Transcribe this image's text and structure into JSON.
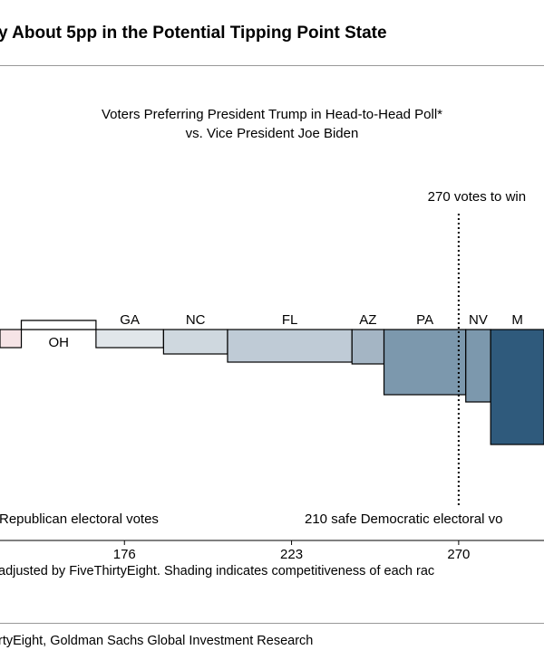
{
  "title": "y About 5pp in the Potential Tipping Point State",
  "subtitle_line1": "Voters Preferring President Trump in Head-to-Head Poll*",
  "subtitle_line2": "vs. Vice President Joe Biden",
  "threshold_label": "270 votes to win",
  "left_annotation": "Republican electoral votes",
  "right_annotation": "210 safe Democratic electoral vo",
  "note": "adjusted by FiveThirtyEight.  Shading indicates competitiveness of each rac",
  "source": "rtyEight, Goldman Sachs Global Investment Research",
  "colors": {
    "axis": "#000000",
    "rule": "#999999",
    "pink": "#f6e4e6"
  },
  "chart_data": {
    "type": "bar",
    "title": "Voters Preferring President Trump in Head-to-Head Poll* vs. Vice President Joe Biden",
    "xlabel": "",
    "ylabel": "",
    "xlim": [
      141,
      294
    ],
    "x_ticks": [
      176,
      223,
      270
    ],
    "threshold": {
      "x": 270,
      "label": "270 votes to win",
      "style": "dotted"
    },
    "grid": false,
    "legend": "none",
    "y_units": "relative margin (baseline = 0, negative = below line)",
    "series": [
      {
        "state": "",
        "x_start": 141,
        "x_end": 147,
        "value": -2.0,
        "color": "#f6e4e6"
      },
      {
        "state": "",
        "x_start": 147,
        "x_end": 168,
        "value": 1.0,
        "color": "#ffffff"
      },
      {
        "state": "OH",
        "x_start": 147,
        "x_end": 168,
        "value": 1.0,
        "color": "#ffffff"
      },
      {
        "state": "GA",
        "x_start": 168,
        "x_end": 187,
        "value": -2.0,
        "color": "#e1e6ea"
      },
      {
        "state": "NC",
        "x_start": 187,
        "x_end": 205,
        "value": -2.7,
        "color": "#cfd8df"
      },
      {
        "state": "FL",
        "x_start": 205,
        "x_end": 240,
        "value": -3.6,
        "color": "#bfcbd6"
      },
      {
        "state": "AZ",
        "x_start": 240,
        "x_end": 249,
        "value": -3.8,
        "color": "#a4b5c4"
      },
      {
        "state": "PA",
        "x_start": 249,
        "x_end": 272,
        "value": -7.2,
        "color": "#7c98ad"
      },
      {
        "state": "NV",
        "x_start": 272,
        "x_end": 279,
        "value": -8.0,
        "color": "#7c98ad"
      },
      {
        "state": "M",
        "x_start": 279,
        "x_end": 294,
        "value": -12.7,
        "color": "#2f5a7c"
      }
    ]
  }
}
